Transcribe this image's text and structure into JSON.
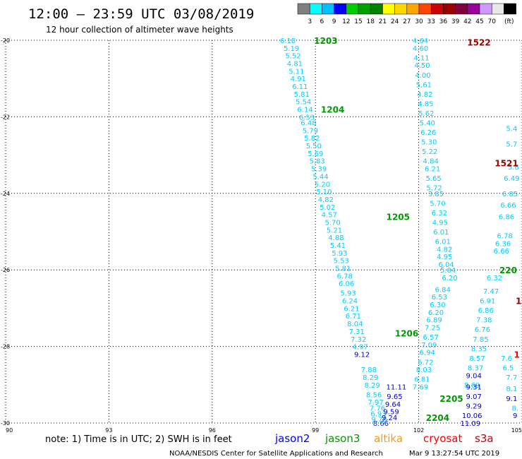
{
  "header": {
    "title": "12:00 – 23:59 UTC 03/08/2019",
    "subtitle": "12 hour collection of altimeter wave heights"
  },
  "colorbar": {
    "unit_label": "(ft)",
    "labels": [
      "3",
      "6",
      "9",
      "12",
      "15",
      "18",
      "21",
      "24",
      "27",
      "30",
      "33",
      "36",
      "39",
      "42",
      "45",
      "70"
    ],
    "colors": [
      "#808080",
      "#00ffff",
      "#00bfff",
      "#0000ff",
      "#00cc00",
      "#00a000",
      "#008000",
      "#ffff00",
      "#ffd700",
      "#ffa500",
      "#ff4500",
      "#cc0000",
      "#990000",
      "#800040",
      "#990099",
      "#cc99ff",
      "#e8e8e8",
      "#000000"
    ]
  },
  "footer": {
    "note": "note:  1) Time is in UTC;  2) SWH is in feet",
    "missions": [
      {
        "name": "jason2",
        "color": "#0000ff"
      },
      {
        "name": "jason3",
        "color": "#009900"
      },
      {
        "name": "altika",
        "color": "#ff9900"
      },
      {
        "name": "cryosat",
        "color": "#ff0000"
      },
      {
        "name": "s3a",
        "color": "#cc0000"
      }
    ],
    "credit": "NOAA/NESDIS Center for Satellite Applications and Research",
    "timestamp": "Mar  9 13:27:54 UTC 2019"
  },
  "chart_data": {
    "type": "scatter",
    "xlim": [
      90,
      105
    ],
    "ylim": [
      -30,
      -20
    ],
    "x_ticks": [
      90,
      93,
      96,
      99,
      102,
      105
    ],
    "x_tick_labels": [
      "90",
      "93",
      "96",
      "99",
      "102",
      "105"
    ],
    "y_ticks": [
      -20,
      -22,
      -24,
      -26,
      -28,
      -30
    ],
    "y_tick_labels": [
      "-20",
      "-22",
      "-24",
      "-26",
      "-28",
      "-30"
    ],
    "grid": true,
    "series": [
      {
        "name": "jason3",
        "color_key": "#00ccff",
        "points": [
          {
            "x": 98.2,
            "y": -20.0,
            "v": "6.18"
          },
          {
            "x": 98.3,
            "y": -20.2,
            "v": "5.19"
          },
          {
            "x": 98.35,
            "y": -20.4,
            "v": "5.52"
          },
          {
            "x": 98.4,
            "y": -20.6,
            "v": "4.81"
          },
          {
            "x": 98.45,
            "y": -20.8,
            "v": "5.11"
          },
          {
            "x": 98.5,
            "y": -21.0,
            "v": "4.91"
          },
          {
            "x": 98.55,
            "y": -21.2,
            "v": "6.11"
          },
          {
            "x": 98.6,
            "y": -21.4,
            "v": "5.81"
          },
          {
            "x": 98.65,
            "y": -21.6,
            "v": "5.54"
          },
          {
            "x": 98.7,
            "y": -21.8,
            "v": "6.14"
          },
          {
            "x": 98.75,
            "y": -22.0,
            "v": "6.53"
          },
          {
            "x": 98.8,
            "y": -22.15,
            "v": "6.48"
          },
          {
            "x": 98.85,
            "y": -22.35,
            "v": "5.79"
          },
          {
            "x": 98.9,
            "y": -22.55,
            "v": "5.82"
          },
          {
            "x": 98.95,
            "y": -22.75,
            "v": "5.50"
          },
          {
            "x": 99.0,
            "y": -22.95,
            "v": "5.69"
          },
          {
            "x": 99.05,
            "y": -23.15,
            "v": "5.83"
          },
          {
            "x": 99.1,
            "y": -23.35,
            "v": "5.39"
          },
          {
            "x": 99.15,
            "y": -23.55,
            "v": "5.44"
          },
          {
            "x": 99.2,
            "y": -23.75,
            "v": "5.20"
          },
          {
            "x": 99.25,
            "y": -23.95,
            "v": "5.10"
          },
          {
            "x": 99.3,
            "y": -24.15,
            "v": "4.82"
          },
          {
            "x": 99.35,
            "y": -24.35,
            "v": "5.02"
          },
          {
            "x": 99.4,
            "y": -24.55,
            "v": "4.57"
          },
          {
            "x": 99.5,
            "y": -24.75,
            "v": "5.70"
          },
          {
            "x": 99.55,
            "y": -24.95,
            "v": "5.21"
          },
          {
            "x": 99.6,
            "y": -25.15,
            "v": "4.88"
          },
          {
            "x": 99.65,
            "y": -25.35,
            "v": "5.41"
          },
          {
            "x": 99.7,
            "y": -25.55,
            "v": "5.93"
          },
          {
            "x": 99.75,
            "y": -25.75,
            "v": "5.53"
          },
          {
            "x": 99.8,
            "y": -25.95,
            "v": "5.81"
          },
          {
            "x": 99.85,
            "y": -26.15,
            "v": "6.78"
          },
          {
            "x": 99.9,
            "y": -26.35,
            "v": "6.06"
          },
          {
            "x": 99.95,
            "y": -26.6,
            "v": "5.93"
          },
          {
            "x": 100.0,
            "y": -26.8,
            "v": "6.24"
          },
          {
            "x": 100.05,
            "y": -27.0,
            "v": "6.21"
          },
          {
            "x": 100.1,
            "y": -27.2,
            "v": "6.71"
          },
          {
            "x": 100.15,
            "y": -27.4,
            "v": "8.04"
          },
          {
            "x": 100.2,
            "y": -27.6,
            "v": "7.31"
          },
          {
            "x": 100.25,
            "y": -27.8,
            "v": "7.32"
          },
          {
            "x": 100.3,
            "y": -28.0,
            "v": "4.97"
          },
          {
            "x": 100.55,
            "y": -28.6,
            "v": "7.88"
          },
          {
            "x": 100.6,
            "y": -28.8,
            "v": "8.29"
          },
          {
            "x": 100.65,
            "y": -29.0,
            "v": "8.29"
          },
          {
            "x": 100.7,
            "y": -29.25,
            "v": "8.56"
          },
          {
            "x": 100.75,
            "y": -29.45,
            "v": "7.97"
          },
          {
            "x": 100.8,
            "y": -29.6,
            "v": "7.76"
          },
          {
            "x": 100.83,
            "y": -29.75,
            "v": "6.93"
          },
          {
            "x": 100.85,
            "y": -29.9,
            "v": "9.78"
          },
          {
            "x": 102.05,
            "y": -20.0,
            "v": "4.64"
          },
          {
            "x": 102.05,
            "y": -20.2,
            "v": "4.60"
          },
          {
            "x": 102.08,
            "y": -20.45,
            "v": "4.11"
          },
          {
            "x": 102.1,
            "y": -20.65,
            "v": "4.50"
          },
          {
            "x": 102.12,
            "y": -20.9,
            "v": "4.00"
          },
          {
            "x": 102.15,
            "y": -21.15,
            "v": "5.61"
          },
          {
            "x": 102.18,
            "y": -21.4,
            "v": "4.82"
          },
          {
            "x": 102.2,
            "y": -21.65,
            "v": "4.85"
          },
          {
            "x": 102.22,
            "y": -21.9,
            "v": "5.62"
          },
          {
            "x": 102.25,
            "y": -22.15,
            "v": "5.40"
          },
          {
            "x": 102.28,
            "y": -22.4,
            "v": "6.26"
          },
          {
            "x": 102.3,
            "y": -22.65,
            "v": "5.30"
          },
          {
            "x": 102.32,
            "y": -22.9,
            "v": "5.22"
          },
          {
            "x": 102.35,
            "y": -23.15,
            "v": "4.84"
          },
          {
            "x": 102.4,
            "y": -23.35,
            "v": "6.21"
          },
          {
            "x": 102.43,
            "y": -23.6,
            "v": "5.65"
          },
          {
            "x": 102.45,
            "y": -23.85,
            "v": "5.72"
          },
          {
            "x": 102.5,
            "y": -24.0,
            "v": "3.85"
          },
          {
            "x": 102.55,
            "y": -24.25,
            "v": "5.70"
          },
          {
            "x": 102.6,
            "y": -24.5,
            "v": "6.32"
          },
          {
            "x": 102.62,
            "y": -24.75,
            "v": "4.95"
          },
          {
            "x": 102.65,
            "y": -25.0,
            "v": "6.01"
          },
          {
            "x": 102.7,
            "y": -25.25,
            "v": "6.01"
          },
          {
            "x": 102.75,
            "y": -25.45,
            "v": "4.82"
          },
          {
            "x": 102.75,
            "y": -25.65,
            "v": "4.95"
          },
          {
            "x": 102.8,
            "y": -25.85,
            "v": "6.04"
          },
          {
            "x": 102.85,
            "y": -26.0,
            "v": "5.04"
          },
          {
            "x": 102.9,
            "y": -26.2,
            "v": "6.20"
          },
          {
            "x": 102.7,
            "y": -26.5,
            "v": "6.84"
          },
          {
            "x": 102.6,
            "y": -26.7,
            "v": "6.53"
          },
          {
            "x": 102.55,
            "y": -26.9,
            "v": "6.30"
          },
          {
            "x": 102.5,
            "y": -27.1,
            "v": "6.20"
          },
          {
            "x": 102.45,
            "y": -27.3,
            "v": "6.89"
          },
          {
            "x": 102.4,
            "y": -27.5,
            "v": "7.25"
          },
          {
            "x": 102.35,
            "y": -27.75,
            "v": "6.57"
          },
          {
            "x": 102.3,
            "y": -27.95,
            "v": "7.09"
          },
          {
            "x": 102.25,
            "y": -28.15,
            "v": "6.94"
          },
          {
            "x": 102.2,
            "y": -28.4,
            "v": "6.72"
          },
          {
            "x": 102.15,
            "y": -28.6,
            "v": "8.03"
          },
          {
            "x": 102.1,
            "y": -28.85,
            "v": "6.81"
          },
          {
            "x": 102.05,
            "y": -29.05,
            "v": "7.69"
          },
          {
            "x": 104.7,
            "y": -22.3,
            "v": "5.4"
          },
          {
            "x": 104.7,
            "y": -22.7,
            "v": "5.7"
          },
          {
            "x": 104.75,
            "y": -23.3,
            "v": "5.8"
          },
          {
            "x": 104.7,
            "y": -23.6,
            "v": "6.49"
          },
          {
            "x": 104.65,
            "y": -24.0,
            "v": "6.85"
          },
          {
            "x": 104.6,
            "y": -24.3,
            "v": "6.66"
          },
          {
            "x": 104.55,
            "y": -24.6,
            "v": "6.86"
          },
          {
            "x": 104.5,
            "y": -25.1,
            "v": "6.78"
          },
          {
            "x": 104.45,
            "y": -25.3,
            "v": "6.36"
          },
          {
            "x": 104.4,
            "y": -25.5,
            "v": "6.66"
          },
          {
            "x": 104.2,
            "y": -26.2,
            "v": "6.32"
          },
          {
            "x": 104.1,
            "y": -26.55,
            "v": "7.47"
          },
          {
            "x": 104.0,
            "y": -26.8,
            "v": "6.91"
          },
          {
            "x": 103.95,
            "y": -27.05,
            "v": "6.86"
          },
          {
            "x": 103.9,
            "y": -27.3,
            "v": "7.38"
          },
          {
            "x": 103.85,
            "y": -27.55,
            "v": "6.76"
          },
          {
            "x": 103.8,
            "y": -27.8,
            "v": "7.85"
          },
          {
            "x": 103.75,
            "y": -28.05,
            "v": "8.35"
          },
          {
            "x": 103.7,
            "y": -28.3,
            "v": "8.57"
          },
          {
            "x": 103.65,
            "y": -28.55,
            "v": "8.37"
          },
          {
            "x": 103.55,
            "y": -29.0,
            "v": "8.69"
          },
          {
            "x": 104.55,
            "y": -28.3,
            "v": "7.6"
          },
          {
            "x": 104.6,
            "y": -28.55,
            "v": "6.5"
          },
          {
            "x": 104.7,
            "y": -28.8,
            "v": "7.7"
          },
          {
            "x": 104.7,
            "y": -29.1,
            "v": "8.1"
          },
          {
            "x": 104.8,
            "y": -29.6,
            "v": "8."
          }
        ]
      },
      {
        "name": "jason2",
        "color_key": "#0000cc",
        "points": [
          {
            "x": 100.35,
            "y": -28.2,
            "v": "9.12"
          },
          {
            "x": 101.35,
            "y": -29.05,
            "v": "11.11"
          },
          {
            "x": 101.3,
            "y": -29.3,
            "v": "9.65"
          },
          {
            "x": 101.25,
            "y": -29.5,
            "v": "9.64"
          },
          {
            "x": 101.2,
            "y": -29.7,
            "v": "9.59"
          },
          {
            "x": 101.15,
            "y": -29.85,
            "v": "9.24"
          },
          {
            "x": 103.6,
            "y": -28.75,
            "v": "9.04"
          },
          {
            "x": 103.6,
            "y": -29.05,
            "v": "9.31"
          },
          {
            "x": 103.6,
            "y": -29.3,
            "v": "9.07"
          },
          {
            "x": 103.6,
            "y": -29.55,
            "v": "9.29"
          },
          {
            "x": 103.55,
            "y": -29.8,
            "v": "10.06"
          },
          {
            "x": 103.5,
            "y": -30.0,
            "v": "11.09"
          },
          {
            "x": 104.7,
            "y": -29.35,
            "v": "9.1"
          },
          {
            "x": 104.8,
            "y": -29.8,
            "v": "9"
          }
        ]
      },
      {
        "name": "jason3",
        "color_key": "#0033cc",
        "points": [
          {
            "x": 100.9,
            "y": -30.0,
            "v": "8.66"
          }
        ]
      }
    ],
    "annotations": [
      {
        "x": 99.3,
        "y": -20.0,
        "text": "1203",
        "color": "#009900"
      },
      {
        "x": 99.5,
        "y": -21.8,
        "text": "1204",
        "color": "#009900"
      },
      {
        "x": 101.4,
        "y": -24.6,
        "text": "1205",
        "color": "#009900"
      },
      {
        "x": 101.65,
        "y": -27.65,
        "text": "1206",
        "color": "#009900"
      },
      {
        "x": 102.95,
        "y": -29.35,
        "text": "2205",
        "color": "#009900"
      },
      {
        "x": 102.55,
        "y": -29.85,
        "text": "2204",
        "color": "#009900"
      },
      {
        "x": 104.6,
        "y": -26.0,
        "text": "220",
        "color": "#009900"
      },
      {
        "x": 103.75,
        "y": -20.05,
        "text": "1522",
        "color": "#990000"
      },
      {
        "x": 104.55,
        "y": -23.2,
        "text": "1521",
        "color": "#990000"
      },
      {
        "x": 104.9,
        "y": -26.8,
        "text": "1",
        "color": "#990000"
      },
      {
        "x": 104.85,
        "y": -28.2,
        "text": "1",
        "color": "#ff0000"
      }
    ]
  }
}
